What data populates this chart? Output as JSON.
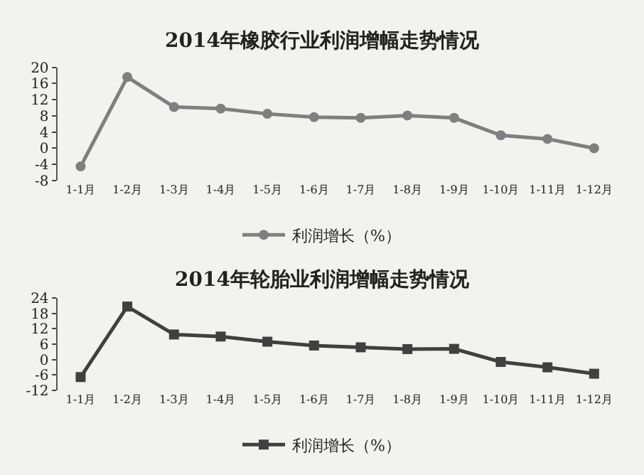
{
  "chart_data": [
    {
      "type": "line",
      "title": "2014年橡胶行业利润增幅走势情况",
      "categories": [
        "1-1月",
        "1-2月",
        "1-3月",
        "1-4月",
        "1-5月",
        "1-6月",
        "1-7月",
        "1-8月",
        "1-9月",
        "1-10月",
        "1-11月",
        "1-12月"
      ],
      "series": [
        {
          "name": "利润增长（%）",
          "color": "#7f7f7f",
          "values": [
            -4.5,
            17.6,
            10.2,
            9.8,
            8.5,
            7.7,
            7.5,
            8.1,
            7.5,
            3.2,
            2.3,
            0
          ]
        }
      ],
      "ylim": [
        -8,
        20
      ],
      "yticks": [
        -8,
        -4,
        0,
        4,
        8,
        12,
        16,
        20
      ],
      "marker": "circle",
      "legend": "bottom",
      "grid": false
    },
    {
      "type": "line",
      "title": "2014年轮胎业利润增幅走势情况",
      "categories": [
        "1-1月",
        "1-2月",
        "1-3月",
        "1-4月",
        "1-5月",
        "1-6月",
        "1-7月",
        "1-8月",
        "1-9月",
        "1-10月",
        "1-11月",
        "1-12月"
      ],
      "series": [
        {
          "name": "利润增长（%）",
          "color": "#404040",
          "values": [
            -6.8,
            20.7,
            9.8,
            9.0,
            7.0,
            5.5,
            4.8,
            4.1,
            4.2,
            -0.9,
            -3,
            -5.5
          ]
        }
      ],
      "ylim": [
        -12,
        24
      ],
      "yticks": [
        -12,
        -6,
        0,
        6,
        12,
        18,
        24
      ],
      "marker": "square",
      "legend": "bottom",
      "grid": false
    }
  ]
}
